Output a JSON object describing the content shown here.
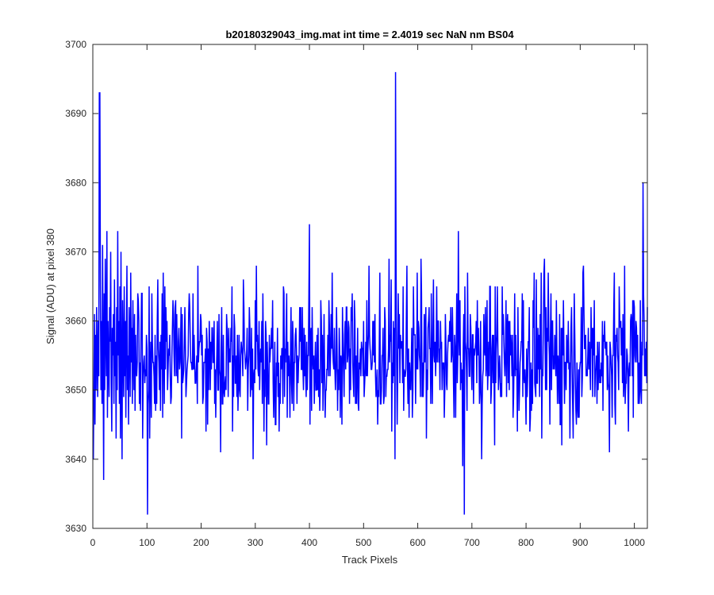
{
  "chart_data": {
    "type": "line",
    "title": "b20180329043_img.mat int time = 2.4019 sec  NaN nm BS04",
    "xlabel": "Track Pixels",
    "ylabel": "Signal (ADU) at pixel 380",
    "xlim": [
      0,
      1024
    ],
    "ylim": [
      3630,
      3700
    ],
    "xticks": [
      0,
      100,
      200,
      300,
      400,
      500,
      600,
      700,
      800,
      900,
      1000
    ],
    "yticks": [
      3630,
      3640,
      3650,
      3660,
      3670,
      3680,
      3690,
      3700
    ],
    "grid": false,
    "legend": "none",
    "line_color": "#0000ff",
    "series": [
      {
        "x_start": 1,
        "x_step": 1,
        "noise": {
          "n_points": 1024,
          "mean": 3655,
          "min": 3632,
          "max": 3696
        },
        "values": [
          3640,
          3651,
          3661,
          3645,
          3658,
          3650,
          3662,
          3655,
          3649,
          3660,
          3652,
          3646,
          3693,
          3665,
          3650,
          3660,
          3648,
          3671,
          3655,
          3637,
          3664,
          3650,
          3669,
          3658,
          3652,
          3673,
          3646,
          3660,
          3654,
          3649,
          3662,
          3657,
          3670,
          3651,
          3644,
          3659,
          3655,
          3661,
          3648,
          3666,
          3652,
          3657,
          3643,
          3662,
          3650,
          3673,
          3655,
          3660,
          3648,
          3665,
          3643,
          3670,
          3651,
          3640,
          3663,
          3656,
          3649,
          3665,
          3652,
          3660,
          3646,
          3658,
          3668,
          3650,
          3655,
          3645,
          3662,
          3657,
          3649,
          3667,
          3654,
          3659,
          3648,
          3663,
          3655,
          3650,
          3661,
          3647,
          3658,
          3653
        ],
        "spikes": [
          {
            "x": 12,
            "y": 3693
          },
          {
            "x": 101,
            "y": 3632
          },
          {
            "x": 559,
            "y": 3696
          },
          {
            "x": 686,
            "y": 3632
          },
          {
            "x": 1016,
            "y": 3680
          }
        ]
      }
    ]
  }
}
